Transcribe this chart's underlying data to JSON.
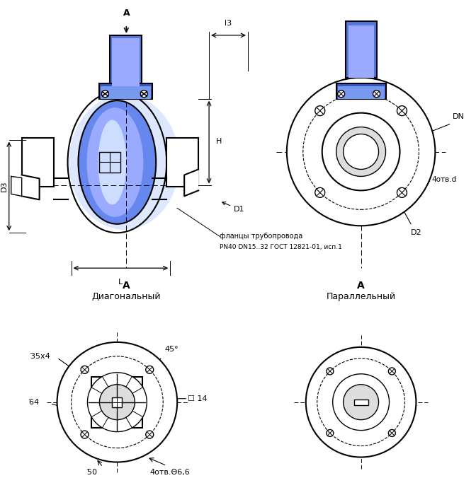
{
  "bg_color": "#ffffff",
  "line_color": "#000000",
  "blue_fill": "#4466cc",
  "blue_light": "#aabbee",
  "blue_grad1": "#2244aa",
  "blue_grad2": "#6688dd",
  "dashed_color": "#555555",
  "label_font_size": 8,
  "title_font_size": 9,
  "labels": {
    "A_section1": "A",
    "diagonal": "Диагональный",
    "A_section2": "A",
    "parallel": "Параллельный",
    "D3": "D3",
    "D1": "D1",
    "D2": "D2",
    "DN": "DN",
    "H": "H",
    "L": "L",
    "l3": "l3",
    "4otv_d": "4отв.d",
    "flanges": "фланцы трубопровода",
    "gost": "PN40 DN15..32 ГОСТ 12821-01, исп.1",
    "d35x4": "͘35х4",
    "d64": "͘64",
    "d50": "͘50",
    "sq14": "☐ 14",
    "angle45": "45°",
    "4otv_6_6": "4отв.Θ6,6"
  }
}
